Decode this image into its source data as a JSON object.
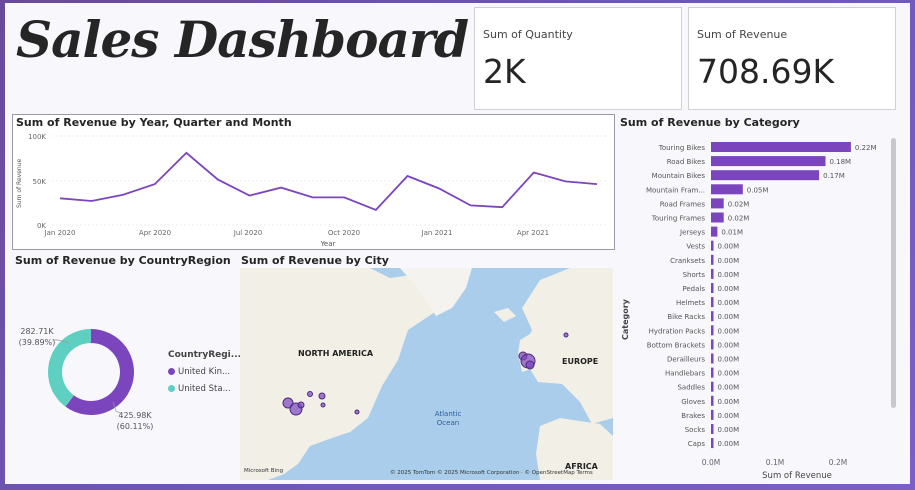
{
  "page": {
    "title": "Sales Dashboard"
  },
  "kpis": [
    {
      "label": "Sum of Quantity",
      "value": "2K"
    },
    {
      "label": "Sum of Revenue",
      "value": "708.69K"
    }
  ],
  "colors": {
    "accent": "#7b45bd",
    "secondary": "#5fcfc2",
    "canvas": "#f8f8fc",
    "background": "#6d58b8"
  },
  "line_chart": {
    "title": "Sum of Revenue by Year, Quarter and Month",
    "ylabel": "Sum of Revenue",
    "xlabel": "Year",
    "yticks": [
      "100K",
      "50K",
      "0K"
    ],
    "xticks": [
      "Jan 2020",
      "Apr 2020",
      "Jul 2020",
      "Oct 2020",
      "Jan 2021",
      "Apr 2021"
    ]
  },
  "donut": {
    "title": "Sum of Revenue by CountryRegion",
    "legend_title": "CountryRegi...",
    "legend": [
      "United Kin...",
      "United Sta..."
    ],
    "labels": [
      {
        "value": "425.98K",
        "pct": "(60.11%)"
      },
      {
        "value": "282.71K",
        "pct": "(39.89%)"
      }
    ]
  },
  "map": {
    "title": "Sum of Revenue by City",
    "labels": {
      "north_america": "NORTH AMERICA",
      "europe": "EUROPE",
      "africa": "AFRICA",
      "ocean_1": "Atlantic",
      "ocean_2": "Ocean"
    },
    "attribution": "© 2025 TomTom © 2025 Microsoft Corporation · © OpenStreetMap Terms",
    "logo": "Microsoft Bing"
  },
  "bar_chart": {
    "title": "Sum of Revenue by Category",
    "xlabel": "Sum of Revenue",
    "ylabel": "Category",
    "xticks": [
      "0.0M",
      "0.1M",
      "0.2M"
    ]
  },
  "chart_data": [
    {
      "type": "line",
      "title": "Sum of Revenue by Year, Quarter and Month",
      "xlabel": "Year",
      "ylabel": "Sum of Revenue",
      "x": [
        "Jan 2020",
        "Feb 2020",
        "Mar 2020",
        "Apr 2020",
        "May 2020",
        "Jun 2020",
        "Jul 2020",
        "Aug 2020",
        "Sep 2020",
        "Oct 2020",
        "Nov 2020",
        "Dec 2020",
        "Jan 2021",
        "Feb 2021",
        "Mar 2021",
        "Apr 2021",
        "May 2021",
        "Jun 2021"
      ],
      "series": [
        {
          "values": [
            30,
            27,
            34,
            46,
            81,
            51,
            33,
            42,
            31,
            31,
            17,
            55,
            41,
            22,
            20,
            59,
            49,
            46
          ]
        }
      ],
      "ylim": [
        0,
        100
      ],
      "units": "K"
    },
    {
      "type": "pie",
      "title": "Sum of Revenue by CountryRegion",
      "categories": [
        "United Kin...",
        "United Sta..."
      ],
      "values": [
        425.98,
        282.71
      ],
      "percent": [
        60.11,
        39.89
      ],
      "units": "K",
      "legend": "right"
    },
    {
      "type": "bar",
      "orientation": "horizontal",
      "title": "Sum of Revenue by Category",
      "xlabel": "Sum of Revenue",
      "ylabel": "Category",
      "categories": [
        "Touring Bikes",
        "Road Bikes",
        "Mountain Bikes",
        "Mountain Fram...",
        "Road Frames",
        "Touring Frames",
        "Jerseys",
        "Vests",
        "Cranksets",
        "Shorts",
        "Pedals",
        "Helmets",
        "Bike Racks",
        "Hydration Packs",
        "Bottom Brackets",
        "Derailleurs",
        "Handlebars",
        "Saddles",
        "Gloves",
        "Brakes",
        "Socks",
        "Caps"
      ],
      "values": [
        0.22,
        0.18,
        0.17,
        0.05,
        0.02,
        0.02,
        0.01,
        0.0,
        0.0,
        0.0,
        0.0,
        0.0,
        0.0,
        0.0,
        0.0,
        0.0,
        0.0,
        0.0,
        0.0,
        0.0,
        0.0,
        0.0
      ],
      "labels": [
        "0.22M",
        "0.18M",
        "0.17M",
        "0.05M",
        "0.02M",
        "0.02M",
        "0.01M",
        "0.00M",
        "0.00M",
        "0.00M",
        "0.00M",
        "0.00M",
        "0.00M",
        "0.00M",
        "0.00M",
        "0.00M",
        "0.00M",
        "0.00M",
        "0.00M",
        "0.00M",
        "0.00M",
        "0.00M"
      ],
      "xlim": [
        0,
        0.25
      ],
      "units": "M"
    }
  ]
}
